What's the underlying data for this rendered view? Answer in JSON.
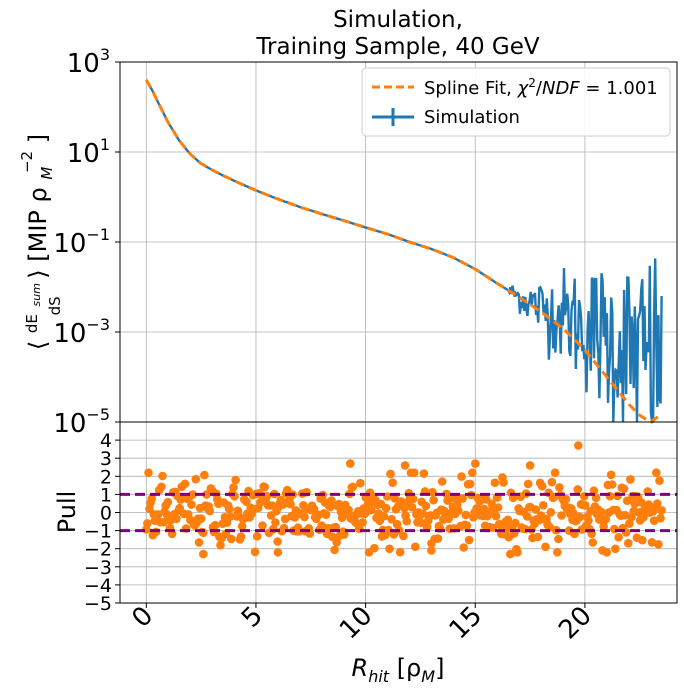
{
  "chart_data": [
    {
      "type": "line",
      "title_lines": [
        "Simulation,",
        "Training Sample, 40 GeV"
      ],
      "ylabel_main": "⟨dEsum/dS⟩ [MIP ρM⁻²]",
      "ylabel_parts": [
        "⟨",
        "dE",
        "sum",
        "dS",
        "⟩ [MIP ρ",
        "M",
        "−2",
        "]"
      ],
      "yscale": "log",
      "ylim": [
        1e-05,
        1000
      ],
      "xlim": [
        -1.2,
        24.2
      ],
      "y_ticks": [
        {
          "value": 1000,
          "base": "10",
          "exp": "3"
        },
        {
          "value": 10,
          "base": "10",
          "exp": "1"
        },
        {
          "value": 0.1,
          "base": "10",
          "exp": "−1"
        },
        {
          "value": 0.001,
          "base": "10",
          "exp": "−3"
        },
        {
          "value": 1e-05,
          "base": "10",
          "exp": "−5"
        }
      ],
      "grid": true,
      "legend_position": "top-right",
      "series": [
        {
          "name": "Spline Fit, χ²/NDF = 1.001",
          "legend_parts": [
            "Spline Fit, ",
            "χ",
            "2",
            "/",
            "NDF",
            " = 1.001"
          ],
          "style": "dashed",
          "color": "#ff7f0e",
          "x": [
            0,
            0.3,
            0.6,
            1.0,
            1.5,
            2.0,
            2.5,
            3.0,
            3.5,
            4.0,
            5.0,
            6.0,
            7.0,
            8.0,
            9.0,
            10.0,
            11.0,
            12.0,
            13.0,
            14.0,
            15.0,
            16.0,
            17.0,
            18.0,
            19.0,
            19.5,
            20.0,
            20.5,
            21.0,
            21.5,
            22.0,
            22.5,
            23.0,
            23.5
          ],
          "y": [
            400,
            220,
            110,
            45,
            18,
            9,
            5.5,
            4.0,
            3.0,
            2.3,
            1.4,
            0.9,
            0.6,
            0.42,
            0.3,
            0.21,
            0.15,
            0.1,
            0.07,
            0.045,
            0.025,
            0.012,
            0.006,
            0.0028,
            0.0012,
            0.0007,
            0.0004,
            0.0002,
            0.0001,
            5e-05,
            2.5e-05,
            1.4e-05,
            1e-05,
            1.5e-05
          ]
        },
        {
          "name": "Simulation",
          "style": "errorbar",
          "color": "#1f77b4",
          "noise_from_x": 16.5,
          "x": [
            0,
            0.3,
            0.6,
            1.0,
            1.5,
            2.0,
            2.5,
            3.0,
            3.5,
            4.0,
            5.0,
            6.0,
            7.0,
            8.0,
            9.0,
            10.0,
            11.0,
            12.0,
            13.0,
            14.0,
            15.0,
            16.0,
            17.0,
            18.0,
            19.0,
            19.5,
            20.0,
            20.5,
            21.0,
            21.5,
            22.0,
            22.5,
            23.0,
            23.5
          ],
          "y": [
            400,
            220,
            110,
            45,
            18,
            9,
            5.5,
            4.0,
            3.0,
            2.3,
            1.4,
            0.9,
            0.6,
            0.42,
            0.3,
            0.21,
            0.15,
            0.1,
            0.07,
            0.045,
            0.025,
            0.012,
            0.006,
            0.0035,
            0.0022,
            0.0017,
            0.0013,
            0.001,
            0.0007,
            0.0005,
            0.0004,
            0.0003,
            0.00025,
            0.0002
          ]
        }
      ]
    },
    {
      "type": "scatter",
      "ylabel": "Pull",
      "xlabel": "Rhit [ρM]",
      "xlabel_parts": [
        "R",
        "hit",
        " [ρ",
        "M",
        "]"
      ],
      "xlim": [
        -1.2,
        24.2
      ],
      "ylim": [
        -5,
        5
      ],
      "x_ticks": [
        "0",
        "5",
        "10",
        "15",
        "20"
      ],
      "y_ticks": [
        "4",
        "3",
        "2",
        "1",
        "0",
        "−1",
        "−2",
        "−3",
        "−4",
        "−5"
      ],
      "grid": true,
      "reference_lines": [
        1,
        -1
      ],
      "reference_color": "#800080",
      "point_color": "#ff7f0e",
      "points": {
        "x_start": 0.0,
        "x_end": 23.5,
        "count": 480,
        "spread_sigma": 0.95
      },
      "outliers": [
        [
          19.7,
          3.7
        ],
        [
          9.3,
          2.7
        ],
        [
          15.0,
          2.7
        ],
        [
          17.5,
          2.6
        ],
        [
          11.8,
          2.6
        ],
        [
          13.0,
          -2.1
        ],
        [
          6.0,
          -2.2
        ],
        [
          2.6,
          -2.3
        ],
        [
          16.6,
          -2.3
        ]
      ]
    }
  ]
}
